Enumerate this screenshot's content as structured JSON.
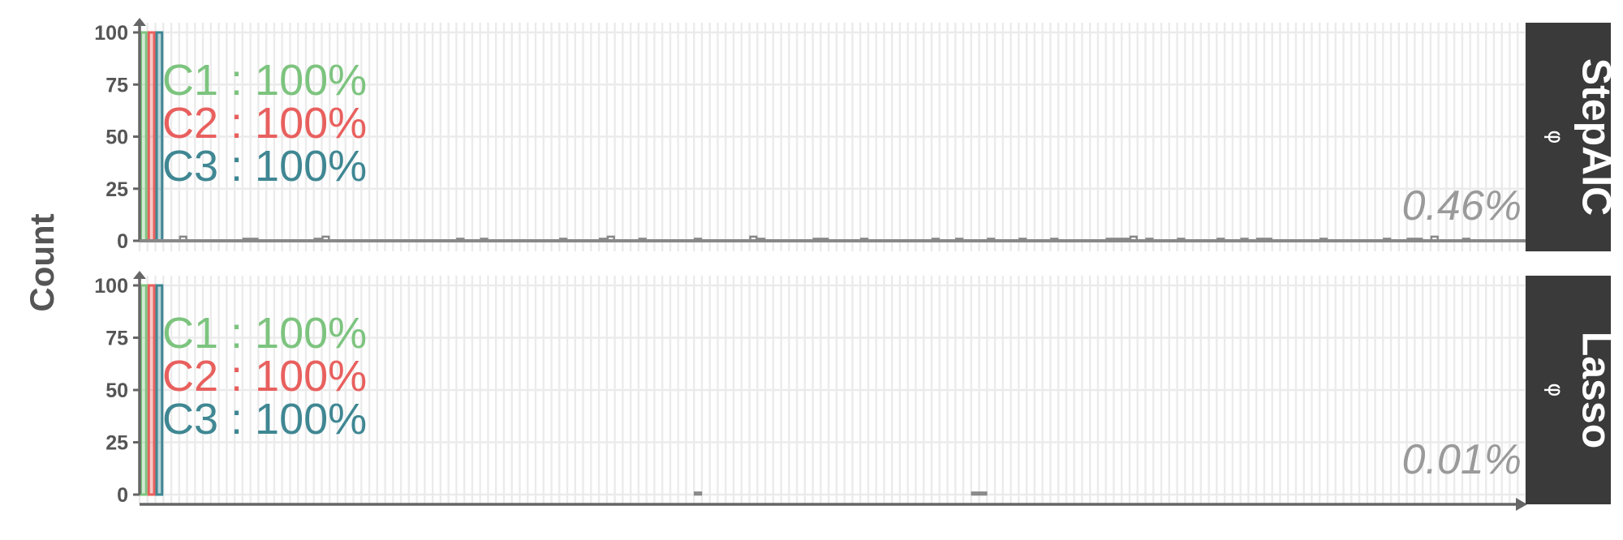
{
  "chart_data": {
    "type": "bar",
    "ylabel": "Count",
    "ylim": [
      0,
      100
    ],
    "yticks": [
      "0",
      "25",
      "50",
      "75",
      "100"
    ],
    "n_bins": 175,
    "grid": true,
    "colors": {
      "C1": "#7dc47f",
      "C2": "#e8605e",
      "C3": "#3f8793",
      "axis": "#666666",
      "minor_bar": "#888888",
      "grid": "#ebebeb",
      "strip_bg": "#3a3a3a",
      "pct_text": "#9a9a9a"
    },
    "panels": [
      {
        "strip_title": "StepAIC",
        "strip_sub": "φ",
        "percent_label": "0.46%",
        "class_labels": [
          {
            "name": "C1",
            "sep": ":",
            "value": "100%"
          },
          {
            "name": "C2",
            "sep": ":",
            "value": "100%"
          },
          {
            "name": "C3",
            "sep": ":",
            "value": "100%"
          }
        ],
        "main_bars": [
          {
            "series": "C1",
            "bin": 0,
            "value": 100
          },
          {
            "series": "C2",
            "bin": 1,
            "value": 100
          },
          {
            "series": "C3",
            "bin": 2,
            "value": 100
          }
        ],
        "minor_bars": [
          {
            "bin": 5,
            "value": 2
          },
          {
            "bin": 13,
            "value": 1
          },
          {
            "bin": 14,
            "value": 1
          },
          {
            "bin": 22,
            "value": 1
          },
          {
            "bin": 23,
            "value": 2
          },
          {
            "bin": 40,
            "value": 1
          },
          {
            "bin": 43,
            "value": 1
          },
          {
            "bin": 53,
            "value": 1
          },
          {
            "bin": 58,
            "value": 1
          },
          {
            "bin": 59,
            "value": 2
          },
          {
            "bin": 63,
            "value": 1
          },
          {
            "bin": 70,
            "value": 1
          },
          {
            "bin": 77,
            "value": 2
          },
          {
            "bin": 78,
            "value": 1
          },
          {
            "bin": 85,
            "value": 1
          },
          {
            "bin": 86,
            "value": 1
          },
          {
            "bin": 91,
            "value": 1
          },
          {
            "bin": 100,
            "value": 1
          },
          {
            "bin": 103,
            "value": 1
          },
          {
            "bin": 107,
            "value": 1
          },
          {
            "bin": 111,
            "value": 1
          },
          {
            "bin": 115,
            "value": 1
          },
          {
            "bin": 122,
            "value": 1
          },
          {
            "bin": 123,
            "value": 1
          },
          {
            "bin": 124,
            "value": 1
          },
          {
            "bin": 125,
            "value": 2
          },
          {
            "bin": 127,
            "value": 1
          },
          {
            "bin": 131,
            "value": 1
          },
          {
            "bin": 136,
            "value": 1
          },
          {
            "bin": 139,
            "value": 1
          },
          {
            "bin": 141,
            "value": 1
          },
          {
            "bin": 142,
            "value": 1
          },
          {
            "bin": 149,
            "value": 1
          },
          {
            "bin": 157,
            "value": 1
          },
          {
            "bin": 160,
            "value": 1
          },
          {
            "bin": 161,
            "value": 1
          },
          {
            "bin": 163,
            "value": 2
          },
          {
            "bin": 167,
            "value": 1
          }
        ]
      },
      {
        "strip_title": "Lasso",
        "strip_sub": "φ",
        "percent_label": "0.01%",
        "class_labels": [
          {
            "name": "C1",
            "sep": ":",
            "value": "100%"
          },
          {
            "name": "C2",
            "sep": ":",
            "value": "100%"
          },
          {
            "name": "C3",
            "sep": ":",
            "value": "100%"
          }
        ],
        "main_bars": [
          {
            "series": "C1",
            "bin": 0,
            "value": 100
          },
          {
            "series": "C2",
            "bin": 1,
            "value": 100
          },
          {
            "series": "C3",
            "bin": 2,
            "value": 100
          }
        ],
        "minor_bars": [
          {
            "bin": 70,
            "value": 1
          },
          {
            "bin": 105,
            "value": 1
          },
          {
            "bin": 106,
            "value": 1
          }
        ]
      }
    ]
  }
}
